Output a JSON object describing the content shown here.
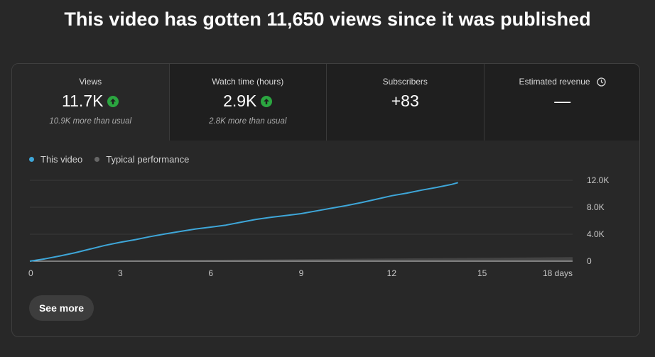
{
  "headline": "This video has gotten 11,650 views since it was published",
  "tabs": [
    {
      "label": "Views",
      "value": "11.7K",
      "sub": "10.9K more than usual",
      "trend": "up"
    },
    {
      "label": "Watch time (hours)",
      "value": "2.9K",
      "sub": "2.8K more than usual",
      "trend": "up"
    },
    {
      "label": "Subscribers",
      "value": "+83",
      "sub": ""
    },
    {
      "label": "Estimated revenue",
      "value": "—",
      "sub": "",
      "icon": "clock-icon"
    }
  ],
  "legend": {
    "this_video": "This video",
    "typical": "Typical performance"
  },
  "colors": {
    "this_video": "#3ea6d8",
    "typical": "#5a5a5a",
    "trend_up": "#2ba640"
  },
  "chart_data": {
    "type": "line",
    "x_ticks": [
      "0",
      "3",
      "6",
      "9",
      "12",
      "15",
      "18 days"
    ],
    "y_ticks": [
      "0",
      "4.0K",
      "8.0K",
      "12.0K"
    ],
    "xlim": [
      0,
      18
    ],
    "ylim": [
      0,
      12000
    ],
    "series": [
      {
        "name": "This video",
        "x": [
          0,
          0.5,
          1,
          1.5,
          2,
          2.5,
          3,
          3.5,
          4,
          4.5,
          5,
          5.5,
          6,
          6.5,
          7,
          7.5,
          8,
          8.5,
          9,
          9.5,
          10,
          10.5,
          11,
          11.5,
          12,
          12.5,
          13,
          13.5,
          14,
          14.2
        ],
        "y": [
          0,
          350,
          780,
          1250,
          1800,
          2350,
          2800,
          3200,
          3650,
          4050,
          4420,
          4780,
          5050,
          5350,
          5780,
          6200,
          6520,
          6780,
          7050,
          7450,
          7850,
          8250,
          8700,
          9200,
          9700,
          10100,
          10550,
          10950,
          11400,
          11650
        ]
      },
      {
        "name": "Typical performance",
        "x": [
          0,
          18
        ],
        "y": [
          0,
          600
        ]
      }
    ]
  },
  "see_more": "See more"
}
